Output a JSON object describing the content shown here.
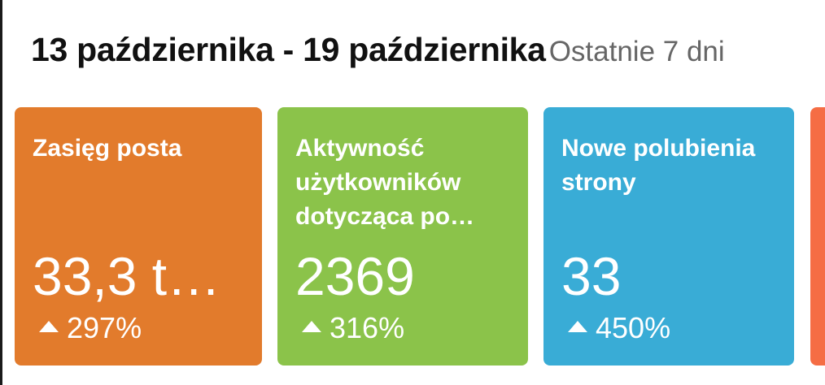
{
  "header": {
    "date_range": "13 października - 19 października",
    "period": "Ostatnie 7 dni"
  },
  "cards": [
    {
      "label": "Zasięg posta",
      "value": "33,3 t…",
      "change": "297%",
      "color": "#e27b2c",
      "trend_icon": "arrow-up-icon"
    },
    {
      "label": "Aktywność użytkowników dotycząca po…",
      "value": "2369",
      "change": "316%",
      "color": "#8bc34a",
      "trend_icon": "arrow-up-icon"
    },
    {
      "label": "Nowe polubienia strony",
      "value": "33",
      "change": "450%",
      "color": "#39acd6",
      "trend_icon": "arrow-up-icon"
    },
    {
      "color": "#f56d44"
    }
  ]
}
